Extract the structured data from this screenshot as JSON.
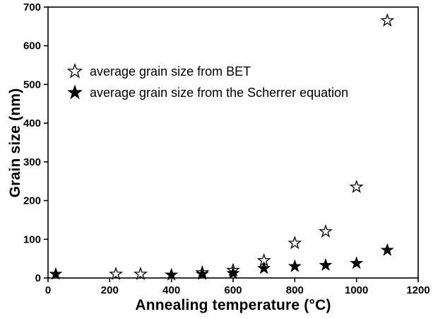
{
  "chart_data": {
    "type": "scatter",
    "title": "",
    "xlabel": "Annealing temperature (°C)",
    "ylabel": "Grain size (nm)",
    "xlim": [
      0,
      1200
    ],
    "ylim": [
      0,
      700
    ],
    "xticks": [
      0,
      200,
      400,
      600,
      800,
      1000,
      1200
    ],
    "yticks": [
      0,
      100,
      200,
      300,
      400,
      500,
      600,
      700
    ],
    "grid": false,
    "legend_position": "upper-left-inside",
    "axis_color": "#000000",
    "background_color": "#ffffff",
    "series": [
      {
        "name": "average grain size from BET",
        "marker": "open-star",
        "color": "#000000",
        "points": [
          [
            220,
            10
          ],
          [
            300,
            10
          ],
          [
            500,
            14
          ],
          [
            600,
            20
          ],
          [
            700,
            45
          ],
          [
            800,
            90
          ],
          [
            900,
            120
          ],
          [
            1000,
            235
          ],
          [
            1100,
            665
          ]
        ]
      },
      {
        "name": "average grain size from the Scherrer equation",
        "marker": "filled-star",
        "color": "#000000",
        "points": [
          [
            25,
            10
          ],
          [
            400,
            8
          ],
          [
            500,
            10
          ],
          [
            600,
            12
          ],
          [
            700,
            25
          ],
          [
            800,
            30
          ],
          [
            900,
            33
          ],
          [
            1000,
            38
          ],
          [
            1100,
            72
          ]
        ]
      }
    ]
  }
}
